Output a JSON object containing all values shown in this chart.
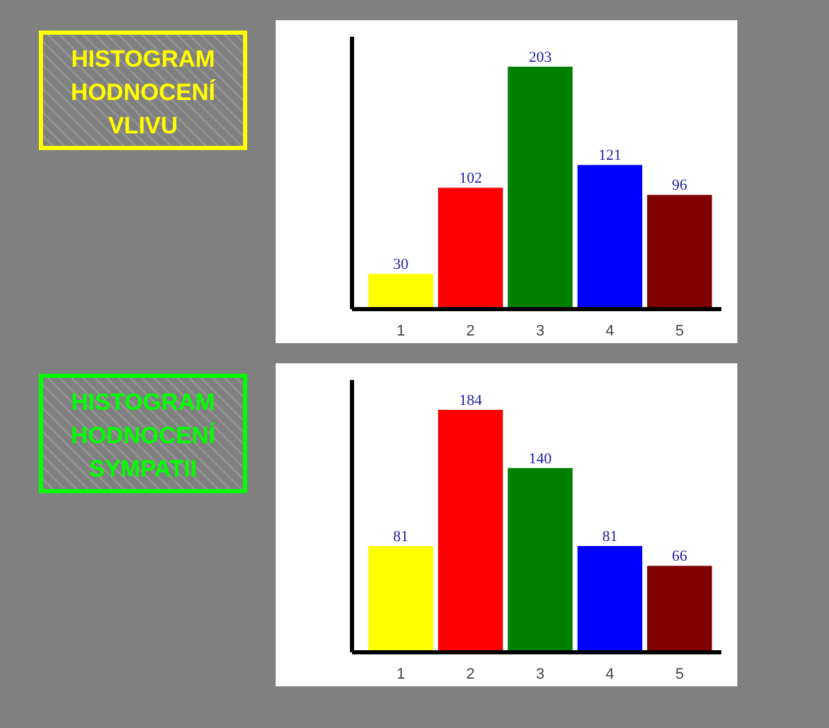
{
  "chart_data": [
    {
      "type": "bar",
      "title": "HISTOGRAM HODNOCENÍ VLIVU",
      "categories": [
        "1",
        "2",
        "3",
        "4",
        "5"
      ],
      "values": [
        30,
        102,
        203,
        121,
        96
      ],
      "colors": [
        "#ffff00",
        "#ff0000",
        "#008000",
        "#0000ff",
        "#800000"
      ],
      "data_labels": true,
      "tick_labels": "x",
      "grid": false
    },
    {
      "type": "bar",
      "title": "HISTOGRAM HODNOCENÍ SYMPATII",
      "categories": [
        "1",
        "2",
        "3",
        "4",
        "5"
      ],
      "values": [
        81,
        184,
        140,
        81,
        66
      ],
      "colors": [
        "#ffff00",
        "#ff0000",
        "#008000",
        "#0000ff",
        "#800000"
      ],
      "data_labels": true,
      "tick_labels": "x",
      "grid": false
    }
  ]
}
